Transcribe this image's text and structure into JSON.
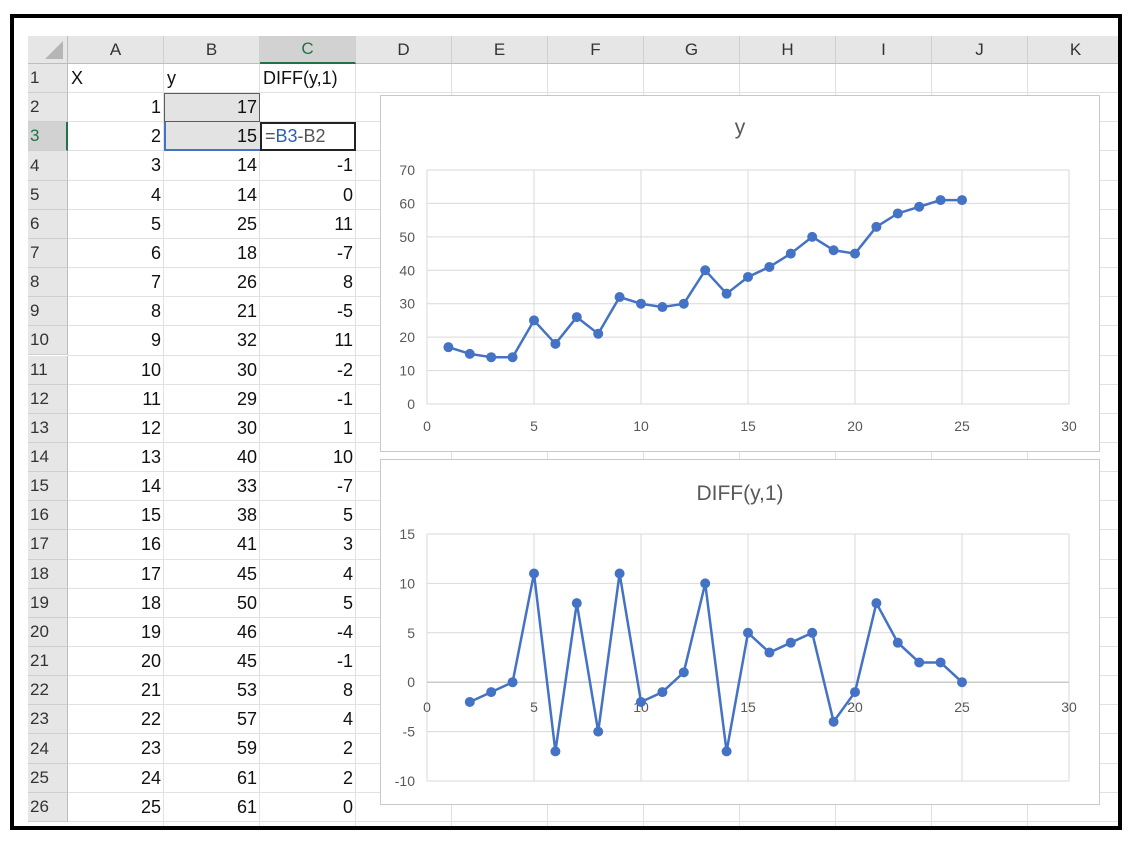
{
  "sheet": {
    "column_headers": [
      "A",
      "B",
      "C",
      "D",
      "E",
      "F",
      "G",
      "H",
      "I",
      "J",
      "K"
    ],
    "row_headers": [
      "1",
      "2",
      "3",
      "4",
      "5",
      "6",
      "7",
      "8",
      "9",
      "10",
      "11",
      "12",
      "13",
      "14",
      "15",
      "16",
      "17",
      "18",
      "19",
      "20",
      "21",
      "22",
      "23",
      "24",
      "25",
      "26"
    ],
    "selected_column": "C",
    "selected_row": "3",
    "header_row": [
      "X",
      "y",
      "DIFF(y,1)"
    ],
    "x_values": [
      "1",
      "2",
      "3",
      "4",
      "5",
      "6",
      "7",
      "8",
      "9",
      "10",
      "11",
      "12",
      "13",
      "14",
      "15",
      "16",
      "17",
      "18",
      "19",
      "20",
      "21",
      "22",
      "23",
      "24",
      "25"
    ],
    "y_values": [
      "17",
      "15",
      "14",
      "14",
      "25",
      "18",
      "26",
      "21",
      "32",
      "30",
      "29",
      "30",
      "40",
      "33",
      "38",
      "41",
      "45",
      "50",
      "46",
      "45",
      "53",
      "57",
      "59",
      "61",
      "61"
    ],
    "diff_values": [
      "",
      "",
      "-1",
      "0",
      "11",
      "-7",
      "8",
      "-5",
      "11",
      "-2",
      "-1",
      "1",
      "10",
      "-7",
      "5",
      "3",
      "4",
      "5",
      "-4",
      "-1",
      "8",
      "4",
      "2",
      "2",
      "0"
    ],
    "active_formula": {
      "eq": "=",
      "ref1": "B3",
      "op": "-",
      "ref2": "B2"
    }
  },
  "chart_data": [
    {
      "type": "line",
      "title": "y",
      "x": [
        1,
        2,
        3,
        4,
        5,
        6,
        7,
        8,
        9,
        10,
        11,
        12,
        13,
        14,
        15,
        16,
        17,
        18,
        19,
        20,
        21,
        22,
        23,
        24,
        25
      ],
      "series": [
        {
          "values": [
            17,
            15,
            14,
            14,
            25,
            18,
            26,
            21,
            32,
            30,
            29,
            30,
            40,
            33,
            38,
            41,
            45,
            50,
            46,
            45,
            53,
            57,
            59,
            61,
            61
          ]
        }
      ],
      "xlim": [
        0,
        30
      ],
      "ylim": [
        0,
        70
      ],
      "x_ticks": [
        "0",
        "5",
        "10",
        "15",
        "20",
        "25",
        "30"
      ],
      "y_ticks": [
        "0",
        "10",
        "20",
        "30",
        "40",
        "50",
        "60",
        "70"
      ],
      "grid": true,
      "color": "#4472c4"
    },
    {
      "type": "line",
      "title": "DIFF(y,1)",
      "x": [
        2,
        3,
        4,
        5,
        6,
        7,
        8,
        9,
        10,
        11,
        12,
        13,
        14,
        15,
        16,
        17,
        18,
        19,
        20,
        21,
        22,
        23,
        24,
        25
      ],
      "series": [
        {
          "values": [
            -2,
            -1,
            0,
            11,
            -7,
            8,
            -5,
            11,
            -2,
            -1,
            1,
            10,
            -7,
            5,
            3,
            4,
            5,
            -4,
            -1,
            8,
            4,
            2,
            2,
            0
          ]
        }
      ],
      "xlim": [
        0,
        30
      ],
      "ylim": [
        -10,
        15
      ],
      "x_ticks": [
        "0",
        "5",
        "10",
        "15",
        "20",
        "25",
        "30"
      ],
      "y_ticks": [
        "-10",
        "-5",
        "0",
        "5",
        "10",
        "15"
      ],
      "grid": true,
      "color": "#4472c4"
    }
  ]
}
